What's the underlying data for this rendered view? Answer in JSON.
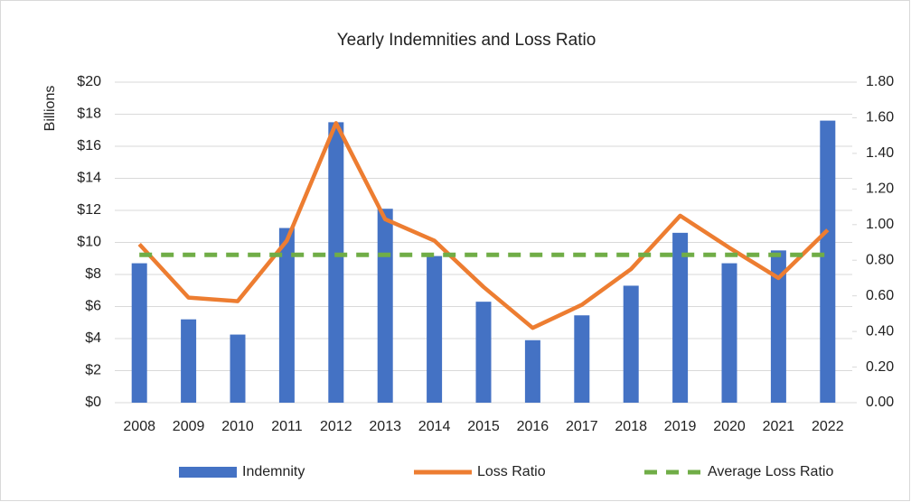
{
  "chart_data": {
    "type": "bar",
    "title": "Yearly Indemnities and Loss Ratio",
    "ylabel": "Billions",
    "categories": [
      "2008",
      "2009",
      "2010",
      "2011",
      "2012",
      "2013",
      "2014",
      "2015",
      "2016",
      "2017",
      "2018",
      "2019",
      "2020",
      "2021",
      "2022"
    ],
    "series": [
      {
        "name": "Indemnity",
        "type": "bar",
        "color": "#4472c4",
        "axis": "y",
        "values": [
          8.7,
          5.2,
          4.25,
          10.9,
          17.5,
          12.1,
          9.15,
          6.3,
          3.9,
          5.45,
          7.3,
          10.6,
          8.7,
          9.5,
          17.6
        ]
      },
      {
        "name": "Loss Ratio",
        "type": "line",
        "color": "#ed7d31",
        "axis": "y2",
        "values": [
          0.89,
          0.59,
          0.57,
          0.91,
          1.57,
          1.03,
          0.91,
          0.65,
          0.42,
          0.55,
          0.75,
          1.05,
          0.87,
          0.7,
          0.97
        ]
      },
      {
        "name": "Average Loss Ratio",
        "type": "line",
        "dashed": true,
        "color": "#70ad47",
        "axis": "y2",
        "values": [
          0.83,
          0.83,
          0.83,
          0.83,
          0.83,
          0.83,
          0.83,
          0.83,
          0.83,
          0.83,
          0.83,
          0.83,
          0.83,
          0.83,
          0.83
        ]
      }
    ],
    "ylim": [
      0,
      20
    ],
    "yticks": [
      {
        "value": 0,
        "label": "$0"
      },
      {
        "value": 2,
        "label": "$2"
      },
      {
        "value": 4,
        "label": "$4"
      },
      {
        "value": 6,
        "label": "$6"
      },
      {
        "value": 8,
        "label": "$8"
      },
      {
        "value": 10,
        "label": "$10"
      },
      {
        "value": 12,
        "label": "$12"
      },
      {
        "value": 14,
        "label": "$14"
      },
      {
        "value": 16,
        "label": "$16"
      },
      {
        "value": 18,
        "label": "$18"
      },
      {
        "value": 20,
        "label": "$20"
      }
    ],
    "y2lim": [
      0,
      1.8
    ],
    "y2ticks": [
      {
        "value": 0,
        "label": "0.00"
      },
      {
        "value": 0.2,
        "label": "0.20"
      },
      {
        "value": 0.4,
        "label": "0.40"
      },
      {
        "value": 0.6,
        "label": "0.60"
      },
      {
        "value": 0.8,
        "label": "0.80"
      },
      {
        "value": 1,
        "label": "1.00"
      },
      {
        "value": 1.2,
        "label": "1.20"
      },
      {
        "value": 1.4,
        "label": "1.40"
      },
      {
        "value": 1.6,
        "label": "1.60"
      },
      {
        "value": 1.8,
        "label": "1.80"
      }
    ],
    "grid": true,
    "legend": "bottom"
  }
}
